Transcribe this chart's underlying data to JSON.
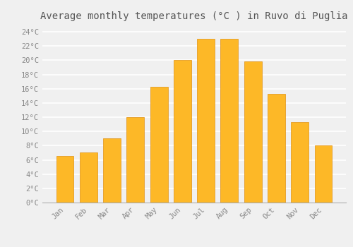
{
  "months": [
    "Jan",
    "Feb",
    "Mar",
    "Apr",
    "May",
    "Jun",
    "Jul",
    "Aug",
    "Sep",
    "Oct",
    "Nov",
    "Dec"
  ],
  "values": [
    6.5,
    7.0,
    9.0,
    12.0,
    16.3,
    20.0,
    23.0,
    23.0,
    19.8,
    15.3,
    11.3,
    8.0
  ],
  "bar_color": "#FDB827",
  "bar_edge_color": "#E09010",
  "title": "Average monthly temperatures (°C ) in Ruvo di Puglia",
  "title_fontsize": 10,
  "ylim": [
    0,
    25
  ],
  "yticks": [
    0,
    2,
    4,
    6,
    8,
    10,
    12,
    14,
    16,
    18,
    20,
    22,
    24
  ],
  "background_color": "#f0f0f0",
  "grid_color": "#ffffff",
  "tick_label_color": "#888888",
  "font_family": "monospace",
  "bar_width": 0.75
}
